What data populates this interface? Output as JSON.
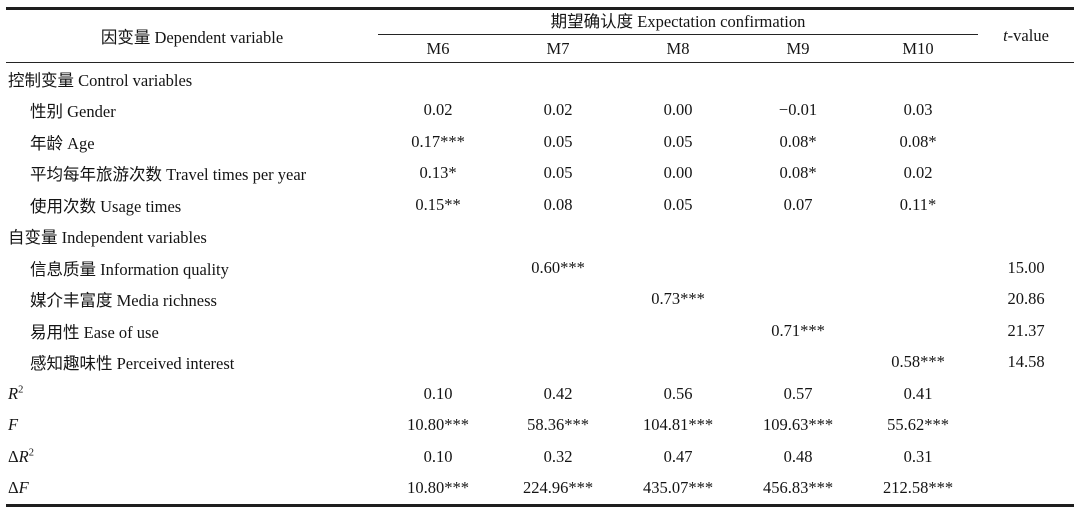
{
  "colors": {
    "background": "#ffffff",
    "text": "#141414",
    "rule": "#1e1e1e"
  },
  "table": {
    "header": {
      "dependent_variable": "因变量 Dependent variable",
      "group": "期望确认度 Expectation confirmation",
      "models": [
        "M6",
        "M7",
        "M8",
        "M9",
        "M10"
      ],
      "t_italic": "t",
      "t_suffix": "-value"
    },
    "rows": [
      {
        "section": true,
        "indent": false,
        "math": false,
        "label_prefix": "",
        "label_main": "控制变量 Control variables",
        "label_sup": "",
        "values": [
          "",
          "",
          "",
          "",
          ""
        ],
        "t": ""
      },
      {
        "section": false,
        "indent": true,
        "math": false,
        "label_prefix": "",
        "label_main": "性别 Gender",
        "label_sup": "",
        "values": [
          "0.02",
          "0.02",
          "0.00",
          "−0.01",
          "0.03"
        ],
        "t": ""
      },
      {
        "section": false,
        "indent": true,
        "math": false,
        "label_prefix": "",
        "label_main": "年龄 Age",
        "label_sup": "",
        "values": [
          "0.17***",
          "0.05",
          "0.05",
          "0.08*",
          "0.08*"
        ],
        "t": ""
      },
      {
        "section": false,
        "indent": true,
        "math": false,
        "label_prefix": "",
        "label_main": "平均每年旅游次数 Travel times per year",
        "label_sup": "",
        "values": [
          "0.13*",
          "0.05",
          "0.00",
          "0.08*",
          "0.02"
        ],
        "t": ""
      },
      {
        "section": false,
        "indent": true,
        "math": false,
        "label_prefix": "",
        "label_main": "使用次数 Usage times",
        "label_sup": "",
        "values": [
          "0.15**",
          "0.08",
          "0.05",
          "0.07",
          "0.11*"
        ],
        "t": ""
      },
      {
        "section": true,
        "indent": false,
        "math": false,
        "label_prefix": "",
        "label_main": "自变量 Independent variables",
        "label_sup": "",
        "values": [
          "",
          "",
          "",
          "",
          ""
        ],
        "t": ""
      },
      {
        "section": false,
        "indent": true,
        "math": false,
        "label_prefix": "",
        "label_main": "信息质量 Information quality",
        "label_sup": "",
        "values": [
          "",
          "0.60***",
          "",
          "",
          ""
        ],
        "t": "15.00"
      },
      {
        "section": false,
        "indent": true,
        "math": false,
        "label_prefix": "",
        "label_main": "媒介丰富度 Media richness",
        "label_sup": "",
        "values": [
          "",
          "",
          "0.73***",
          "",
          ""
        ],
        "t": "20.86"
      },
      {
        "section": false,
        "indent": true,
        "math": false,
        "label_prefix": "",
        "label_main": "易用性 Ease of use",
        "label_sup": "",
        "values": [
          "",
          "",
          "",
          "0.71***",
          ""
        ],
        "t": "21.37"
      },
      {
        "section": false,
        "indent": true,
        "math": false,
        "label_prefix": "",
        "label_main": "感知趣味性 Perceived interest",
        "label_sup": "",
        "values": [
          "",
          "",
          "",
          "",
          "0.58***"
        ],
        "t": "14.58"
      },
      {
        "section": false,
        "indent": false,
        "math": true,
        "label_prefix": "",
        "label_main": "R",
        "label_sup": "2",
        "values": [
          "0.10",
          "0.42",
          "0.56",
          "0.57",
          "0.41"
        ],
        "t": ""
      },
      {
        "section": false,
        "indent": false,
        "math": true,
        "label_prefix": "",
        "label_main": "F",
        "label_sup": "",
        "values": [
          "10.80***",
          "58.36***",
          "104.81***",
          "109.63***",
          "55.62***"
        ],
        "t": ""
      },
      {
        "section": false,
        "indent": false,
        "math": true,
        "label_prefix": "Δ",
        "label_main": "R",
        "label_sup": "2",
        "values": [
          "0.10",
          "0.32",
          "0.47",
          "0.48",
          "0.31"
        ],
        "t": ""
      },
      {
        "section": false,
        "indent": false,
        "math": true,
        "label_prefix": "Δ",
        "label_main": "F",
        "label_sup": "",
        "values": [
          "10.80***",
          "224.96***",
          "435.07***",
          "456.83***",
          "212.58***"
        ],
        "t": ""
      }
    ]
  }
}
